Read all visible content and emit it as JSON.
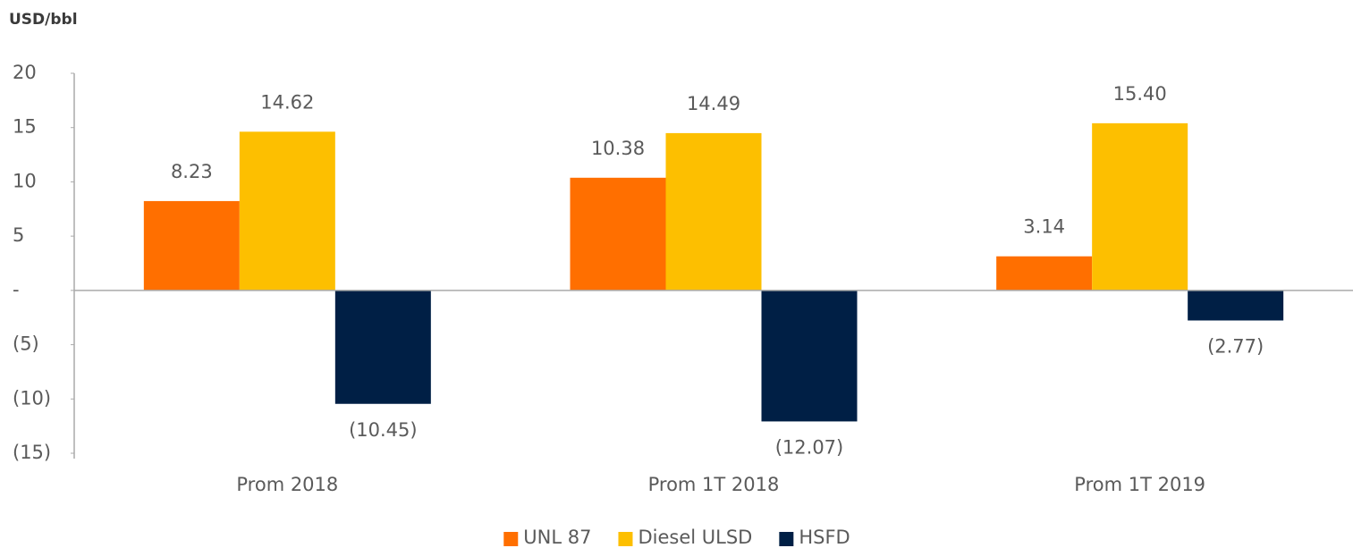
{
  "chart_data": {
    "type": "bar",
    "y_axis_label": "USD/bbl",
    "categories": [
      "Prom 2018",
      "Prom 1T 2018",
      "Prom 1T 2019"
    ],
    "series": [
      {
        "name": "UNL 87",
        "color": "#ff6f00",
        "values": [
          8.23,
          10.38,
          3.14
        ],
        "value_labels": [
          "8.23",
          "10.38",
          "3.14"
        ]
      },
      {
        "name": "Diesel ULSD",
        "color": "#fdbf00",
        "values": [
          14.62,
          14.49,
          15.4
        ],
        "value_labels": [
          "14.62",
          "14.49",
          "15.40"
        ]
      },
      {
        "name": "HSFD",
        "color": "#001f45",
        "values": [
          -10.45,
          -12.07,
          -2.77
        ],
        "value_labels": [
          "(10.45)",
          "(12.07)",
          "(2.77)"
        ]
      }
    ],
    "ylim": [
      -15,
      20
    ],
    "yticks": [
      20,
      15,
      10,
      5,
      {
        "value": 0,
        "label": "-"
      },
      {
        "value": -5,
        "label": "(5)"
      },
      {
        "value": -10,
        "label": "(10)"
      },
      {
        "value": -15,
        "label": "(15)"
      }
    ],
    "grid": false,
    "legend": "bottom"
  }
}
